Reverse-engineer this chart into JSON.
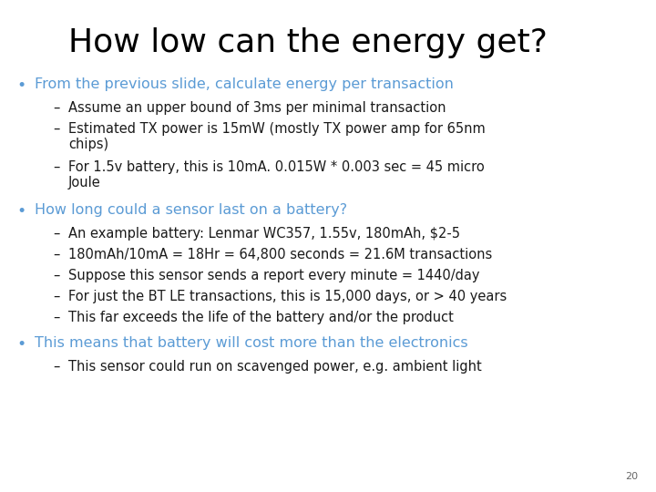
{
  "title": "How low can the energy get?",
  "title_color": "#000000",
  "title_fontsize": 26,
  "background_color": "#ffffff",
  "bullet_color": "#5b9bd5",
  "sub_color": "#1a1a1a",
  "page_number": "20",
  "bullet_fontsize": 11.5,
  "sub_fontsize": 10.5,
  "bullets": [
    {
      "text": "From the previous slide, calculate energy per transaction",
      "color": "#5b9bd5",
      "sub_items": [
        "Assume an upper bound of 3ms per minimal transaction",
        "Estimated TX power is 15mW (mostly TX power amp for 65nm\nchips)",
        "For 1.5v battery, this is 10mA. 0.015W * 0.003 sec = 45 micro\nJoule"
      ]
    },
    {
      "text": "How long could a sensor last on a battery?",
      "color": "#5b9bd5",
      "sub_items": [
        "An example battery: Lenmar WC357, 1.55v, 180mAh, $2-5",
        "180mAh/10mA = 18Hr = 64,800 seconds = 21.6M transactions",
        "Suppose this sensor sends a report every minute = 1440/day",
        "For just the BT LE transactions, this is 15,000 days, or > 40 years",
        "This far exceeds the life of the battery and/or the product"
      ]
    },
    {
      "text": "This means that battery will cost more than the electronics",
      "color": "#5b9bd5",
      "sub_items": [
        "This sensor could run on scavenged power, e.g. ambient light"
      ]
    }
  ]
}
